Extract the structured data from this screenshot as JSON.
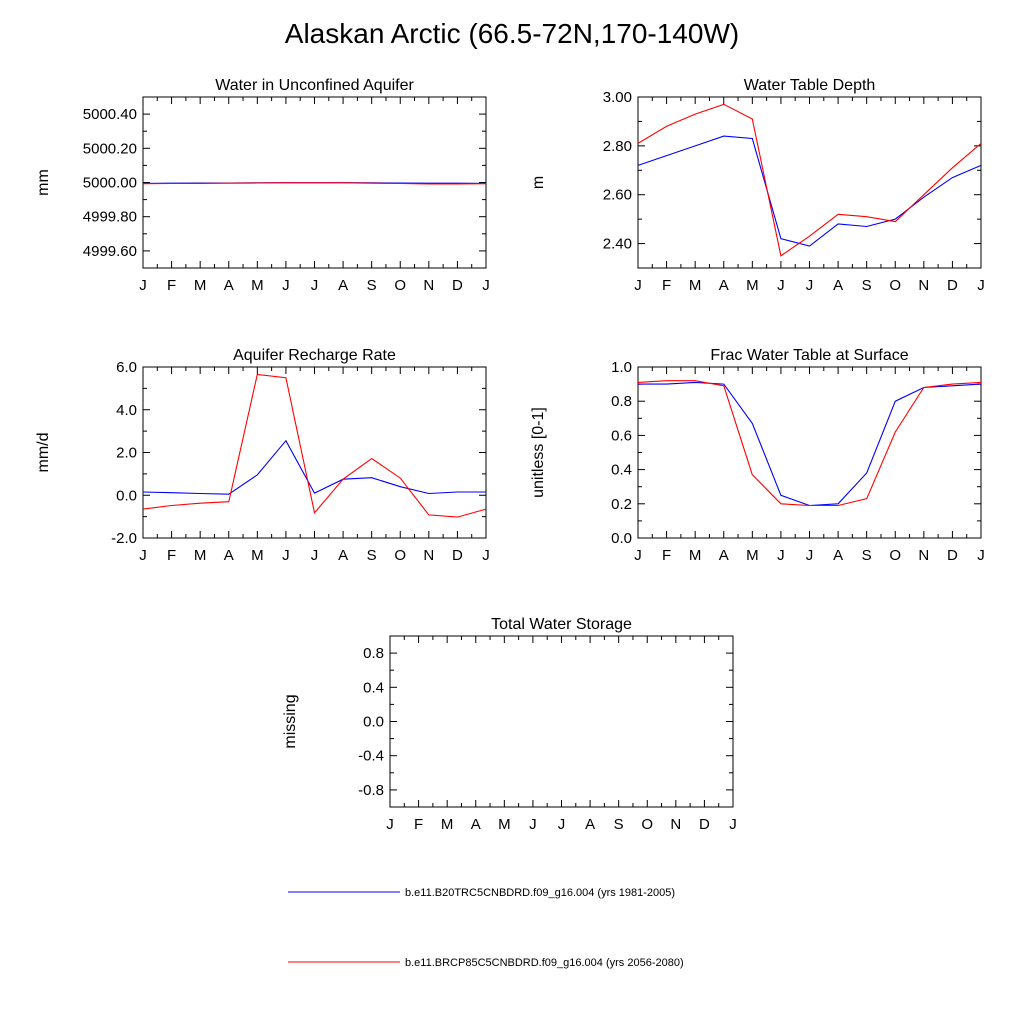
{
  "title": "Alaskan Arctic (66.5-72N,170-140W)",
  "legend": [
    {
      "label": "b.e11.B20TRC5CNBDRD.f09_g16.004 (yrs 1981-2005)",
      "color": "#0000ff"
    },
    {
      "label": "b.e11.BRCP85C5CNBDRD.f09_g16.004 (yrs 2056-2080)",
      "color": "#ff0000"
    }
  ],
  "chart_data": [
    {
      "type": "line",
      "title": "Water in Unconfined Aquifer",
      "ylabel": "mm",
      "xlabel": "",
      "categories": [
        "J",
        "F",
        "M",
        "A",
        "M",
        "J",
        "J",
        "A",
        "S",
        "O",
        "N",
        "D",
        "J"
      ],
      "ylim": [
        4999.5,
        5000.5
      ],
      "yticks": [
        4999.6,
        4999.8,
        5000.0,
        5000.2,
        5000.4
      ],
      "ytick_labels": [
        "4999.60",
        "4999.80",
        "5000.00",
        "5000.20",
        "5000.40"
      ],
      "series": [
        {
          "color": "#0000ff",
          "values": [
            4999.995,
            4999.996,
            4999.997,
            4999.997,
            4999.998,
            4999.999,
            4999.999,
            4999.999,
            4999.998,
            4999.997,
            4999.996,
            4999.996,
            4999.995
          ]
        },
        {
          "color": "#ff0000",
          "values": [
            4999.993,
            4999.994,
            4999.995,
            4999.996,
            4999.997,
            4999.998,
            4999.998,
            4999.998,
            4999.996,
            4999.994,
            4999.991,
            4999.992,
            4999.993
          ]
        }
      ]
    },
    {
      "type": "line",
      "title": "Water Table Depth",
      "ylabel": "m",
      "xlabel": "",
      "categories": [
        "J",
        "F",
        "M",
        "A",
        "M",
        "J",
        "J",
        "A",
        "S",
        "O",
        "N",
        "D",
        "J"
      ],
      "ylim": [
        2.3,
        3.0
      ],
      "yticks": [
        2.4,
        2.6,
        2.8,
        3.0
      ],
      "ytick_labels": [
        "2.40",
        "2.60",
        "2.80",
        "3.00"
      ],
      "series": [
        {
          "color": "#0000ff",
          "values": [
            2.72,
            2.76,
            2.8,
            2.84,
            2.83,
            2.42,
            2.39,
            2.48,
            2.47,
            2.5,
            2.59,
            2.67,
            2.72
          ]
        },
        {
          "color": "#ff0000",
          "values": [
            2.81,
            2.88,
            2.93,
            2.97,
            2.91,
            2.35,
            2.43,
            2.52,
            2.51,
            2.49,
            2.6,
            2.71,
            2.81
          ]
        }
      ]
    },
    {
      "type": "line",
      "title": "Aquifer Recharge Rate",
      "ylabel": "mm/d",
      "xlabel": "",
      "categories": [
        "J",
        "F",
        "M",
        "A",
        "M",
        "J",
        "J",
        "A",
        "S",
        "O",
        "N",
        "D",
        "J"
      ],
      "ylim": [
        -2.0,
        6.0
      ],
      "yticks": [
        -2.0,
        0.0,
        2.0,
        4.0,
        6.0
      ],
      "ytick_labels": [
        "-2.0",
        "0.0",
        "2.0",
        "4.0",
        "6.0"
      ],
      "series": [
        {
          "color": "#0000ff",
          "values": [
            0.15,
            0.12,
            0.08,
            0.05,
            0.95,
            2.55,
            0.1,
            0.75,
            0.82,
            0.4,
            0.08,
            0.15,
            0.15
          ]
        },
        {
          "color": "#ff0000",
          "values": [
            -0.65,
            -0.48,
            -0.37,
            -0.3,
            5.65,
            5.5,
            -0.82,
            0.75,
            1.72,
            0.8,
            -0.92,
            -1.02,
            -0.65
          ]
        }
      ]
    },
    {
      "type": "line",
      "title": "Frac Water Table at Surface",
      "ylabel": "unitless [0-1]",
      "xlabel": "",
      "categories": [
        "J",
        "F",
        "M",
        "A",
        "M",
        "J",
        "J",
        "A",
        "S",
        "O",
        "N",
        "D",
        "J"
      ],
      "ylim": [
        0.0,
        1.0
      ],
      "yticks": [
        0.0,
        0.2,
        0.4,
        0.6,
        0.8,
        1.0
      ],
      "ytick_labels": [
        "0.0",
        "0.2",
        "0.4",
        "0.6",
        "0.8",
        "1.0"
      ],
      "series": [
        {
          "color": "#0000ff",
          "values": [
            0.9,
            0.9,
            0.91,
            0.9,
            0.67,
            0.25,
            0.19,
            0.2,
            0.38,
            0.8,
            0.88,
            0.89,
            0.9
          ]
        },
        {
          "color": "#ff0000",
          "values": [
            0.91,
            0.92,
            0.92,
            0.89,
            0.37,
            0.2,
            0.19,
            0.19,
            0.23,
            0.62,
            0.88,
            0.9,
            0.91
          ]
        }
      ]
    },
    {
      "type": "line",
      "title": "Total Water Storage",
      "ylabel": "missing",
      "xlabel": "",
      "categories": [
        "J",
        "F",
        "M",
        "A",
        "M",
        "J",
        "J",
        "A",
        "S",
        "O",
        "N",
        "D",
        "J"
      ],
      "ylim": [
        -1.0,
        1.0
      ],
      "yticks": [
        -0.8,
        -0.4,
        0.0,
        0.4,
        0.8
      ],
      "ytick_labels": [
        "-0.8",
        "-0.4",
        "0.0",
        "0.4",
        "0.8"
      ],
      "series": []
    }
  ]
}
